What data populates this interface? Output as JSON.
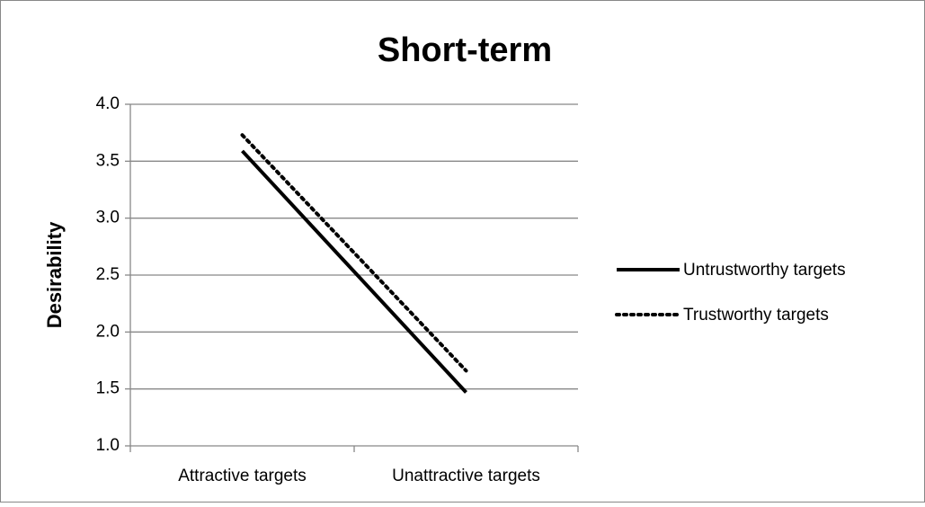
{
  "chart_data": {
    "type": "line",
    "title": "Short-term",
    "y_label": "Desirability",
    "categories": [
      "Attractive targets",
      "Unattractive targets"
    ],
    "series": [
      {
        "name": "Untrustworthy targets",
        "color": "#000000",
        "style": "solid",
        "values": [
          3.59,
          1.47
        ]
      },
      {
        "name": "Trustworthy targets",
        "color": "#000000",
        "style": "dotted",
        "values": [
          3.73,
          1.66
        ]
      }
    ],
    "ylim": [
      1,
      4
    ],
    "yticks": [
      {
        "value": 1,
        "label": "1.0"
      },
      1.5,
      {
        "value": 2,
        "label": "2.0"
      },
      2.5,
      {
        "value": 3,
        "label": "3.0"
      },
      3.5,
      {
        "value": 4,
        "label": "4.0"
      }
    ],
    "grid": true,
    "legend": "right"
  }
}
